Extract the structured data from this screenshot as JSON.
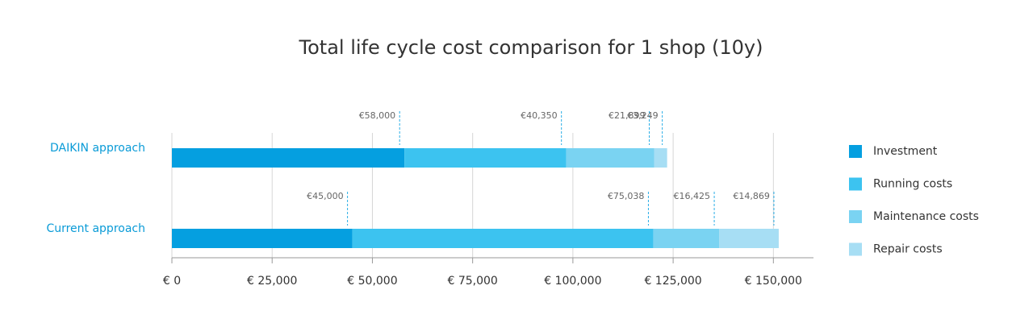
{
  "chart_data": {
    "type": "stacked-bar-horizontal",
    "title": "Total life cycle cost comparison for 1 shop (10y)",
    "categories": [
      "DAIKIN approach",
      "Current approach"
    ],
    "series": [
      {
        "name": "Investment",
        "color": "#059fe0",
        "values": [
          58000,
          45000
        ],
        "value_labels": [
          "€58,000",
          "€45,000"
        ]
      },
      {
        "name": "Running costs",
        "color": "#3cc3f0",
        "values": [
          40350,
          75038
        ],
        "value_labels": [
          "€40,350",
          "€75,038"
        ]
      },
      {
        "name": "Maintenance costs",
        "color": "#7ad3f2",
        "values": [
          21899,
          16425
        ],
        "value_labels": [
          "€21,899",
          "€16,425"
        ]
      },
      {
        "name": "Repair costs",
        "color": "#a7def4",
        "values": [
          3249,
          14869
        ],
        "value_labels": [
          "€3,249",
          "€14,869"
        ]
      }
    ],
    "xlim": [
      0,
      160000
    ],
    "xticks": [
      {
        "value": 0,
        "label": "€ 0"
      },
      {
        "value": 25000,
        "label": "€ 25,000"
      },
      {
        "value": 50000,
        "label": "€ 50,000"
      },
      {
        "value": 75000,
        "label": "€ 75,000"
      },
      {
        "value": 100000,
        "label": "€ 100,000"
      },
      {
        "value": 125000,
        "label": "€ 125,000"
      },
      {
        "value": 150000,
        "label": "€ 150,000"
      }
    ],
    "grid": true,
    "legend": "right"
  }
}
